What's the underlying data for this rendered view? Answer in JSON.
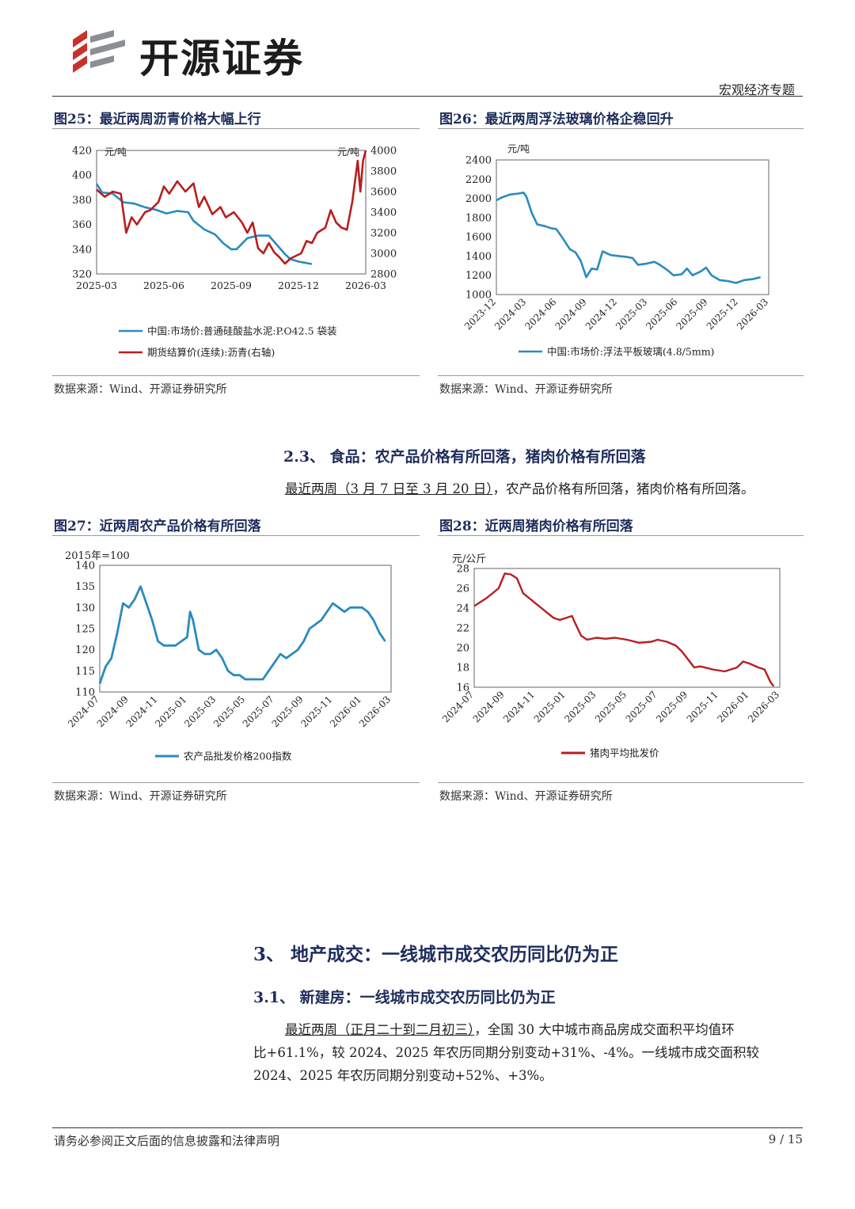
{
  "header": {
    "brand": "开源证券",
    "report_type": "宏观经济专题"
  },
  "figures": {
    "fig25": {
      "title": "图25：最近两周沥青价格大幅上行",
      "source": "数据来源：Wind、开源证券研究所"
    },
    "fig26": {
      "title": "图26：最近两周浮法玻璃价格企稳回升",
      "source": "数据来源：Wind、开源证券研究所"
    },
    "fig27": {
      "title": "图27：近两周农产品价格有所回落",
      "source": "数据来源：Wind、开源证券研究所"
    },
    "fig28": {
      "title": "图28：近两周猪肉价格有所回落",
      "source": "数据来源：Wind、开源证券研究所"
    }
  },
  "section_2_3": {
    "heading": "2.3、 食品：农产品价格有所回落，猪肉价格有所回落",
    "para_underlined": "最近两周（3 月 7 日至 3 月 20 日）",
    "para_rest": "，农产品价格有所回落，猪肉价格有所回落。"
  },
  "section_3": {
    "heading": "3、 地产成交：一线城市成交农历同比仍为正",
    "sub_heading": "3.1、 新建房：一线城市成交农历同比仍为正",
    "para_underlined": "最近两周（正月二十到二月初三）",
    "para_line1_rest": "，全国 30 大中城市商品房成交面积平均值环",
    "para_line2": "比+61.1%，较 2024、2025 年农历同期分别变动+31%、-4%。一线城市成交面积较",
    "para_line3": "2024、2025 年农历同期分别变动+52%、+3%。"
  },
  "footer": {
    "disclaimer": "请务必参阅正文后面的信息披露和法律声明",
    "page": "9 / 15"
  },
  "colors": {
    "blue": "#2a8bbf",
    "red": "#b81e1e",
    "navy": "#1f2d5c"
  },
  "chart_data": [
    {
      "id": "fig25",
      "type": "line",
      "x_labels": [
        "2025-03",
        "2025-06",
        "2025-09",
        "2025-12",
        "2026-03"
      ],
      "left_axis": {
        "unit": "元/吨",
        "ticks": [
          320,
          340,
          360,
          380,
          400,
          420
        ],
        "ylim": [
          320,
          420
        ]
      },
      "right_axis": {
        "unit": "元/吨",
        "ticks": [
          2800,
          3000,
          3200,
          3400,
          3600,
          3800,
          4000
        ],
        "ylim": [
          2800,
          4000
        ]
      },
      "series": [
        {
          "name": "中国:市场价:普通硅酸盐水泥:P.O42.5 袋装",
          "axis": "left",
          "color": "#2a8bbf",
          "values": [
            [
              0,
              393
            ],
            [
              0.02,
              386
            ],
            [
              0.06,
              385
            ],
            [
              0.1,
              378
            ],
            [
              0.14,
              377
            ],
            [
              0.18,
              374
            ],
            [
              0.22,
              372
            ],
            [
              0.26,
              369
            ],
            [
              0.3,
              371
            ],
            [
              0.34,
              370
            ],
            [
              0.36,
              363
            ],
            [
              0.4,
              356
            ],
            [
              0.44,
              352
            ],
            [
              0.47,
              345
            ],
            [
              0.5,
              340
            ],
            [
              0.52,
              340
            ],
            [
              0.56,
              349
            ],
            [
              0.6,
              351
            ],
            [
              0.64,
              351
            ],
            [
              0.66,
              346
            ],
            [
              0.7,
              336
            ],
            [
              0.72,
              332
            ],
            [
              0.75,
              330
            ],
            [
              0.8,
              328
            ]
          ]
        },
        {
          "name": "期货结算价(连续):沥青(右轴)",
          "axis": "right",
          "color": "#b81e1e",
          "values": [
            [
              0,
              3620
            ],
            [
              0.03,
              3550
            ],
            [
              0.06,
              3600
            ],
            [
              0.09,
              3580
            ],
            [
              0.11,
              3200
            ],
            [
              0.13,
              3350
            ],
            [
              0.15,
              3280
            ],
            [
              0.18,
              3400
            ],
            [
              0.2,
              3420
            ],
            [
              0.23,
              3500
            ],
            [
              0.25,
              3650
            ],
            [
              0.27,
              3580
            ],
            [
              0.3,
              3700
            ],
            [
              0.33,
              3600
            ],
            [
              0.36,
              3680
            ],
            [
              0.38,
              3450
            ],
            [
              0.4,
              3550
            ],
            [
              0.43,
              3380
            ],
            [
              0.46,
              3450
            ],
            [
              0.48,
              3350
            ],
            [
              0.51,
              3400
            ],
            [
              0.54,
              3300
            ],
            [
              0.56,
              3200
            ],
            [
              0.58,
              3300
            ],
            [
              0.6,
              3050
            ],
            [
              0.62,
              3000
            ],
            [
              0.64,
              3100
            ],
            [
              0.66,
              3010
            ],
            [
              0.68,
              2960
            ],
            [
              0.7,
              2900
            ],
            [
              0.72,
              2950
            ],
            [
              0.76,
              3000
            ],
            [
              0.78,
              3120
            ],
            [
              0.8,
              3100
            ],
            [
              0.82,
              3200
            ],
            [
              0.85,
              3250
            ],
            [
              0.87,
              3420
            ],
            [
              0.89,
              3300
            ],
            [
              0.91,
              3250
            ],
            [
              0.93,
              3230
            ],
            [
              0.95,
              3500
            ],
            [
              0.96,
              3700
            ],
            [
              0.97,
              3900
            ],
            [
              0.98,
              3600
            ],
            [
              0.99,
              3900
            ],
            [
              1.0,
              4000
            ]
          ]
        }
      ]
    },
    {
      "id": "fig26",
      "type": "line",
      "unit": "元/吨",
      "x_labels": [
        "2023-12",
        "2024-03",
        "2024-06",
        "2024-09",
        "2024-12",
        "2025-03",
        "2025-06",
        "2025-09",
        "2025-12",
        "2026-03"
      ],
      "ylim": [
        1000,
        2400
      ],
      "yticks": [
        1000,
        1200,
        1400,
        1600,
        1800,
        2000,
        2200,
        2400
      ],
      "series": [
        {
          "name": "中国:市场价:浮法平板玻璃(4.8/5mm)",
          "color": "#2a8bbf",
          "values": [
            [
              0,
              1980
            ],
            [
              0.02,
              2010
            ],
            [
              0.05,
              2040
            ],
            [
              0.08,
              2050
            ],
            [
              0.1,
              2060
            ],
            [
              0.11,
              2020
            ],
            [
              0.13,
              1850
            ],
            [
              0.15,
              1730
            ],
            [
              0.18,
              1710
            ],
            [
              0.2,
              1690
            ],
            [
              0.22,
              1680
            ],
            [
              0.24,
              1600
            ],
            [
              0.27,
              1470
            ],
            [
              0.29,
              1440
            ],
            [
              0.31,
              1350
            ],
            [
              0.33,
              1180
            ],
            [
              0.35,
              1270
            ],
            [
              0.37,
              1260
            ],
            [
              0.39,
              1450
            ],
            [
              0.42,
              1410
            ],
            [
              0.45,
              1400
            ],
            [
              0.48,
              1390
            ],
            [
              0.5,
              1380
            ],
            [
              0.52,
              1310
            ],
            [
              0.55,
              1320
            ],
            [
              0.58,
              1340
            ],
            [
              0.6,
              1310
            ],
            [
              0.63,
              1250
            ],
            [
              0.65,
              1200
            ],
            [
              0.68,
              1210
            ],
            [
              0.7,
              1270
            ],
            [
              0.72,
              1200
            ],
            [
              0.75,
              1240
            ],
            [
              0.77,
              1280
            ],
            [
              0.79,
              1200
            ],
            [
              0.82,
              1150
            ],
            [
              0.85,
              1140
            ],
            [
              0.88,
              1120
            ],
            [
              0.91,
              1150
            ],
            [
              0.94,
              1160
            ],
            [
              0.97,
              1180
            ]
          ]
        }
      ]
    },
    {
      "id": "fig27",
      "type": "line",
      "unit": "2015年=100",
      "x_labels": [
        "2024-07",
        "2024-09",
        "2024-11",
        "2025-01",
        "2025-03",
        "2025-05",
        "2025-07",
        "2025-09",
        "2025-11",
        "2026-01",
        "2026-03"
      ],
      "ylim": [
        110,
        140
      ],
      "yticks": [
        110,
        115,
        120,
        125,
        130,
        135,
        140
      ],
      "series": [
        {
          "name": "农产品批发价格200指数",
          "color": "#2a8bbf",
          "values": [
            [
              0,
              112
            ],
            [
              0.02,
              116
            ],
            [
              0.04,
              118
            ],
            [
              0.06,
              124
            ],
            [
              0.08,
              131
            ],
            [
              0.1,
              130
            ],
            [
              0.12,
              132
            ],
            [
              0.14,
              135
            ],
            [
              0.16,
              131
            ],
            [
              0.18,
              127
            ],
            [
              0.2,
              122
            ],
            [
              0.22,
              121
            ],
            [
              0.24,
              121
            ],
            [
              0.26,
              121
            ],
            [
              0.28,
              122
            ],
            [
              0.3,
              123
            ],
            [
              0.31,
              129
            ],
            [
              0.32,
              127
            ],
            [
              0.34,
              120
            ],
            [
              0.36,
              119
            ],
            [
              0.38,
              119
            ],
            [
              0.4,
              120
            ],
            [
              0.42,
              118
            ],
            [
              0.44,
              115
            ],
            [
              0.46,
              114
            ],
            [
              0.48,
              114
            ],
            [
              0.5,
              113
            ],
            [
              0.52,
              113
            ],
            [
              0.54,
              113
            ],
            [
              0.56,
              113
            ],
            [
              0.58,
              115
            ],
            [
              0.6,
              117
            ],
            [
              0.62,
              119
            ],
            [
              0.64,
              118
            ],
            [
              0.66,
              119
            ],
            [
              0.68,
              120
            ],
            [
              0.7,
              122
            ],
            [
              0.72,
              125
            ],
            [
              0.74,
              126
            ],
            [
              0.76,
              127
            ],
            [
              0.78,
              129
            ],
            [
              0.8,
              131
            ],
            [
              0.82,
              130
            ],
            [
              0.84,
              129
            ],
            [
              0.86,
              130
            ],
            [
              0.88,
              130
            ],
            [
              0.9,
              130
            ],
            [
              0.92,
              129
            ],
            [
              0.94,
              127
            ],
            [
              0.96,
              124
            ],
            [
              0.98,
              122
            ]
          ]
        }
      ]
    },
    {
      "id": "fig28",
      "type": "line",
      "unit": "元/公斤",
      "x_labels": [
        "2024-07",
        "2024-09",
        "2024-11",
        "2025-01",
        "2025-03",
        "2025-05",
        "2025-07",
        "2025-09",
        "2025-11",
        "2026-01",
        "2026-03"
      ],
      "ylim": [
        16,
        28
      ],
      "yticks": [
        16,
        18,
        20,
        22,
        24,
        26,
        28
      ],
      "series": [
        {
          "name": "猪肉平均批发价",
          "color": "#b81e1e",
          "values": [
            [
              0,
              24.2
            ],
            [
              0.04,
              25
            ],
            [
              0.08,
              26
            ],
            [
              0.1,
              27.5
            ],
            [
              0.12,
              27.4
            ],
            [
              0.14,
              27
            ],
            [
              0.16,
              25.5
            ],
            [
              0.18,
              25
            ],
            [
              0.2,
              24.5
            ],
            [
              0.22,
              24
            ],
            [
              0.24,
              23.5
            ],
            [
              0.26,
              23
            ],
            [
              0.28,
              22.8
            ],
            [
              0.3,
              23
            ],
            [
              0.32,
              23.2
            ],
            [
              0.33,
              22.5
            ],
            [
              0.35,
              21.2
            ],
            [
              0.37,
              20.8
            ],
            [
              0.4,
              21
            ],
            [
              0.43,
              20.9
            ],
            [
              0.46,
              21
            ],
            [
              0.5,
              20.8
            ],
            [
              0.54,
              20.5
            ],
            [
              0.58,
              20.6
            ],
            [
              0.6,
              20.8
            ],
            [
              0.63,
              20.6
            ],
            [
              0.66,
              20.2
            ],
            [
              0.68,
              19.6
            ],
            [
              0.7,
              18.8
            ],
            [
              0.72,
              18.0
            ],
            [
              0.74,
              18.1
            ],
            [
              0.78,
              17.8
            ],
            [
              0.82,
              17.6
            ],
            [
              0.86,
              18.0
            ],
            [
              0.88,
              18.6
            ],
            [
              0.9,
              18.4
            ],
            [
              0.93,
              18.0
            ],
            [
              0.95,
              17.8
            ],
            [
              0.97,
              16.5
            ],
            [
              0.98,
              16.1
            ]
          ]
        }
      ]
    }
  ]
}
